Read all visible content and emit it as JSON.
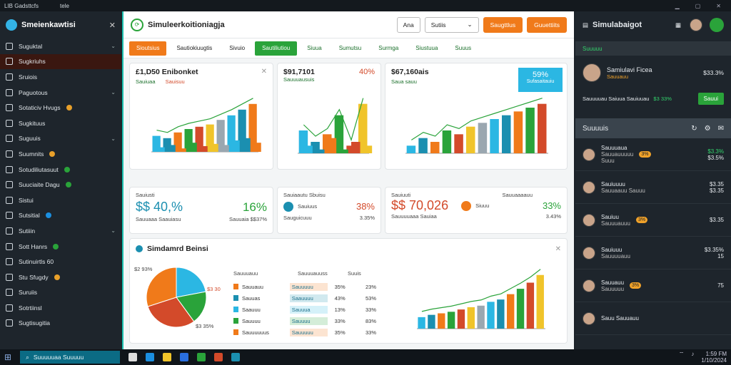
{
  "topbar": {
    "title": "LIB Gadsttcfs",
    "menu": "tele"
  },
  "sidebar": {
    "title": "Smeienkawtisi",
    "items": [
      {
        "label": "Suguktal",
        "chev": true,
        "active": false
      },
      {
        "label": "Sugkriuhs",
        "chev": false,
        "active": true
      },
      {
        "label": "Sruiois",
        "chev": false
      },
      {
        "label": "Paguotous",
        "chev": true
      },
      {
        "label": "Sotaticiv Hvugs",
        "dot": "#e8a02a"
      },
      {
        "label": "Sugkituus",
        "chev": false
      },
      {
        "label": "Suguuis",
        "chev": true
      },
      {
        "label": "Suumnits",
        "dot": "#e8a02a"
      },
      {
        "label": "Sotudiliutasuut",
        "dot": "#2aa33a"
      },
      {
        "label": "Suuciaite Dagu",
        "dot": "#2aa33a"
      },
      {
        "label": "Sistui"
      },
      {
        "label": "Sutsitial",
        "dot": "#1b8fe0"
      },
      {
        "label": "Sutiiin",
        "chev": true
      },
      {
        "label": "Sott Hanrs",
        "dot": "#2aa33a"
      },
      {
        "label": "Sutinuirtls 60"
      },
      {
        "label": "Stu Sfugdy",
        "dot": "#e8a02a"
      },
      {
        "label": "Suruiis"
      },
      {
        "label": "Sotrtiinsl"
      },
      {
        "label": "Sugtisugitia"
      }
    ]
  },
  "main": {
    "title": "Simuleerkoitioniagja",
    "btn1": "Ana",
    "btn2": "Sutiis",
    "obtn1": "Saugttlus",
    "obtn2": "Guuettiits",
    "tabs": [
      {
        "label": "Sioutsius",
        "style": "o"
      },
      {
        "label": "Sautiokiuugtis",
        "style": "b"
      },
      {
        "label": "Sivuio",
        "style": "b"
      },
      {
        "label": "Sautiliutiou",
        "style": "g"
      },
      {
        "label": "Siuua",
        "style": ""
      },
      {
        "label": "Sumutsu",
        "style": ""
      },
      {
        "label": "Surmga",
        "style": ""
      },
      {
        "label": "Siustuua",
        "style": ""
      },
      {
        "label": "Suuus",
        "style": ""
      }
    ],
    "card1": {
      "title": "£1,D50 Enibonket",
      "legend1": "Sauiuaa",
      "legend2": "Sauisuu"
    },
    "card2": {
      "title": "$91,7101",
      "pct": "40%",
      "legend": "Sauuuausuis"
    },
    "card3": {
      "title": "$67,160ais",
      "legend": "Saua sauu",
      "badge": "59%",
      "badge2": "Sufasaitauiu"
    },
    "stat1": {
      "label": "Sauiusti",
      "value": "$$ 40,%",
      "pct": "16%",
      "sub1": "Sauuaaa Saauiasu",
      "sub2": "Sauuaia $$37%"
    },
    "stat2": {
      "label": "Sauiaautu Sbuisu",
      "name": "Sauiuus",
      "pct": "38%",
      "sub": "Sauguicuuu",
      "sub2": "3.35%"
    },
    "stat3": {
      "label": "Sauiuuti",
      "value": "$$ 70,026",
      "sub": "Sauuuuaaa Sauiaa",
      "name": "Siuuu",
      "pct": "33%",
      "lbl2": "Sauuaaaauu",
      "sub2": "3.43%"
    },
    "bottom": {
      "title": "Simdamrd Beinsi",
      "pie_label1": "$2 93%",
      "pie_label2": "$3 30",
      "pie_label3": "$3 35%",
      "table_headers": [
        "Sauuuauu",
        "Sauuuauuss",
        "Suuis"
      ],
      "rows": [
        {
          "name": "Sauuauu",
          "tag": "Sauuuuu",
          "p1": "35%",
          "p2": "23%"
        },
        {
          "name": "Sauuas",
          "tag": "Saauuuu",
          "p1": "43%",
          "p2": "53%"
        },
        {
          "name": "Saauuu",
          "tag": "Sauuua",
          "p1": "13%",
          "p2": "33%"
        },
        {
          "name": "Sauuuu",
          "tag": "Sauuuu",
          "p1": "33%",
          "p2": "83%"
        },
        {
          "name": "Sauuuuuus",
          "tag": "Sauuuuu",
          "p1": "35%",
          "p2": "33%"
        }
      ],
      "chart_legend1": "Sauuuauu",
      "chart_legend2": "Sauuu"
    }
  },
  "right": {
    "title": "Simulabaigot",
    "user": {
      "name": "Samiulavi Ficea",
      "sub": "Sauuauu",
      "amount": "$33.3%"
    },
    "summary": {
      "label": "Sauuuuau Saiuua Sauiuuau",
      "pct": "$3 33%",
      "btn": "Sauui"
    },
    "section": "Suuuuis",
    "section2": "Suuuuu",
    "list": [
      {
        "name": "Sauuuaua",
        "sub": "Sauuauuuuu",
        "badge": "3%",
        "value": "$3.3%",
        "val2": "$3.5%",
        "sub2": "Suuu"
      },
      {
        "name": "Sauiuuuu",
        "sub": "Sauuaauu Sauuu",
        "badge": "",
        "value": "$3.35",
        "val2": "$3.35"
      },
      {
        "name": "Sauiuu",
        "sub": "Sauuuauuu",
        "badge": "3%",
        "value": "$3.35"
      },
      {
        "name": "Sauiuuu",
        "sub": "Sauuuuauu",
        "badge": "",
        "value": "$3.35%",
        "val2": "15"
      },
      {
        "name": "Sauuauu",
        "sub": "Sauuuuu",
        "badge": "3%",
        "value": "75"
      },
      {
        "name": "Sauu Sauuauu",
        "sub": "",
        "badge": "",
        "value": ""
      }
    ]
  },
  "taskbar": {
    "search": "Suuuuuaa Suuuuu",
    "time": "1:59 FM",
    "date": "1/10/2024"
  },
  "chart_data": [
    {
      "type": "bar",
      "categories": [
        "a",
        "b",
        "c",
        "d",
        "e",
        "f",
        "g",
        "h",
        "i",
        "j"
      ],
      "series": [
        {
          "values": [
            70,
            60,
            85,
            100,
            110,
            120,
            140,
            160,
            185,
            210
          ]
        },
        {
          "values": [
            20,
            30,
            15,
            40,
            25,
            35,
            30,
            50,
            60,
            40
          ]
        }
      ],
      "ylim": [
        0,
        250
      ]
    },
    {
      "type": "bar",
      "categories": [
        "a",
        "b",
        "c",
        "d",
        "e",
        "f"
      ],
      "series": [
        {
          "values": [
            60,
            30,
            50,
            100,
            20,
            130
          ]
        },
        {
          "values": [
            20,
            10,
            40,
            10,
            30,
            20
          ]
        }
      ],
      "ylim": [
        0,
        150
      ]
    },
    {
      "type": "bar",
      "categories": [
        "a",
        "b",
        "c",
        "d",
        "e",
        "f",
        "g",
        "h",
        "i",
        "j",
        "k",
        "l"
      ],
      "series": [
        {
          "values": [
            20,
            40,
            30,
            60,
            50,
            70,
            80,
            90,
            100,
            110,
            120,
            130
          ]
        }
      ],
      "ylim": [
        0,
        150
      ]
    },
    {
      "type": "pie",
      "values": [
        22,
        18,
        30,
        30
      ]
    },
    {
      "type": "bar",
      "categories": [
        "a",
        "b",
        "c",
        "d",
        "e",
        "f",
        "g",
        "h",
        "i",
        "j",
        "k",
        "l",
        "m"
      ],
      "series": [
        {
          "values": [
            15,
            18,
            20,
            22,
            25,
            28,
            30,
            35,
            38,
            45,
            52,
            60,
            70
          ]
        }
      ],
      "ylim": [
        0,
        80
      ]
    }
  ]
}
